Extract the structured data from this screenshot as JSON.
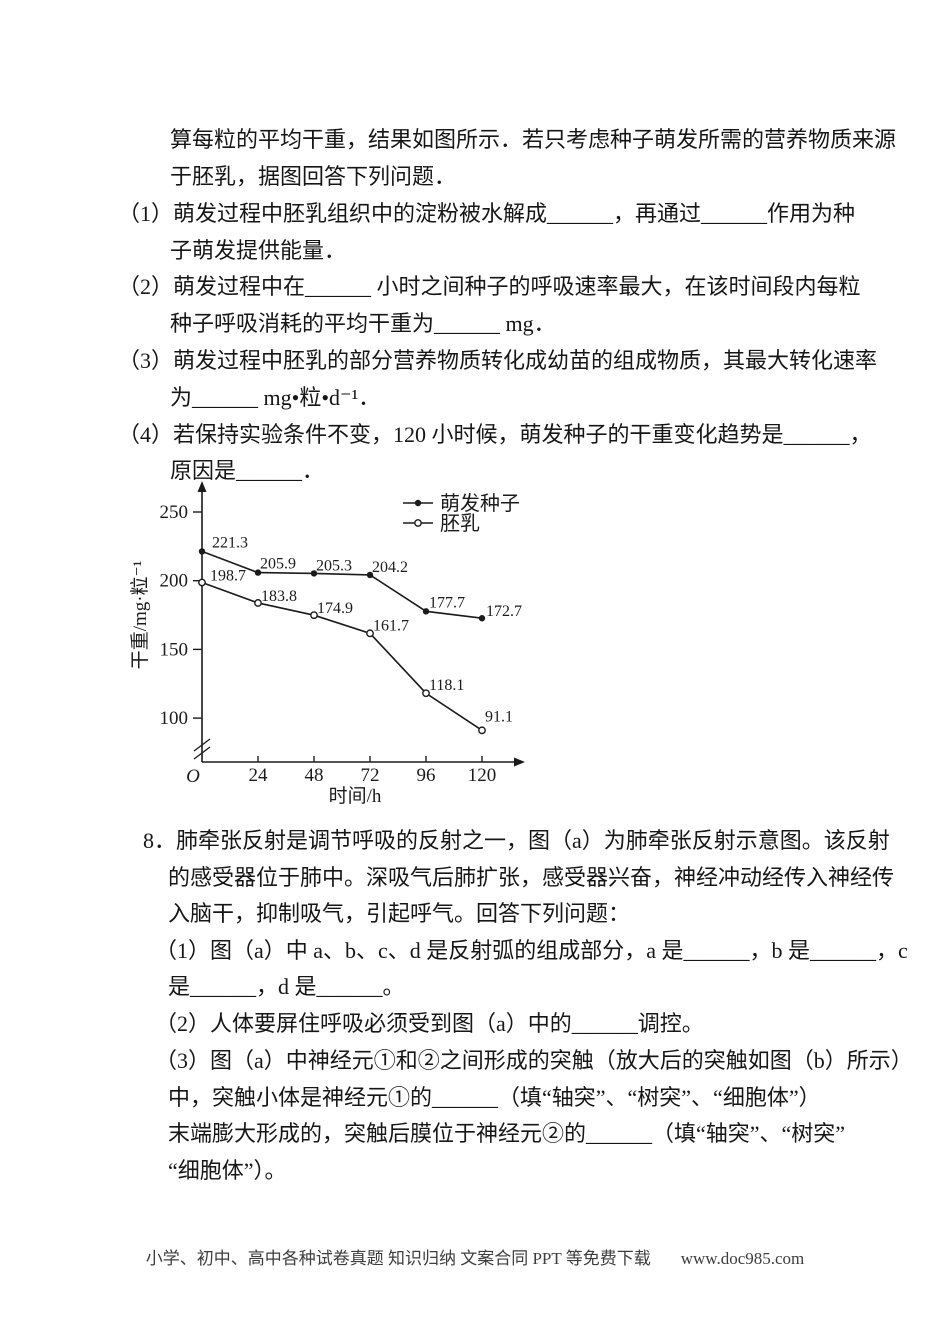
{
  "q7": {
    "intro_l1": "算每粒的平均干重，结果如图所示．若只考虑种子萌发所需的营养物质来源",
    "intro_l2": "于胚乳，据图回答下列问题．",
    "item1_l1": "（1）萌发过程中胚乳组织中的淀粉被水解成______，再通过______作用为种",
    "item1_l2": "子萌发提供能量．",
    "item2_l1": "（2）萌发过程中在______ 小时之间种子的呼吸速率最大，在该时间段内每粒",
    "item2_l2": "种子呼吸消耗的平均干重为______ mg．",
    "item3_l1": "（3）萌发过程中胚乳的部分营养物质转化成幼苗的组成物质，其最大转化速率",
    "item3_l2": "为______ mg•粒•d⁻¹．",
    "item4_l1": "（4）若保持实验条件不变，120 小时候，萌发种子的干重变化趋势是______，",
    "item4_l2": "原因是______．"
  },
  "q8": {
    "intro_l1": "8．肺牵张反射是调节呼吸的反射之一，图（a）为肺牵张反射示意图。该反射",
    "intro_l2": "的感受器位于肺中。深吸气后肺扩张，感受器兴奋，神经冲动经传入神经传",
    "intro_l3": "入脑干，抑制吸气，引起呼气。回答下列问题：",
    "item1_l1": "（1）图（a）中 a、b、c、d 是反射弧的组成部分，a 是______，b 是______，c",
    "item1_l2": "是______，d 是______。",
    "item2_l1": "（2）人体要屏住呼吸必须受到图（a）中的______调控。",
    "item3_l1": "（3）图（a）中神经元①和②之间形成的突触（放大后的突触如图（b）所示）",
    "item3_l2": "中，突触小体是神经元①的______（填“轴突”、“树突”、“细胞体”）",
    "item3_l3": "末端膨大形成的，突触后膜位于神经元②的______（填“轴突”、“树突”",
    "item3_l4": "“细胞体”）。"
  },
  "footer": {
    "text": "小学、初中、高中各种试卷真题 知识归纳 文案合同 PPT 等免费下载",
    "site": "www.doc985.com"
  },
  "chart_data": {
    "type": "line",
    "title": "",
    "xlabel": "时间/h",
    "ylabel": "干重/mg·粒⁻¹",
    "x": [
      0,
      24,
      48,
      72,
      96,
      120
    ],
    "x_tick_labels": [
      "O",
      "24",
      "48",
      "72",
      "96",
      "120"
    ],
    "y_ticks": [
      250,
      200,
      150,
      100
    ],
    "ylim": [
      85,
      262
    ],
    "y_axis_break": true,
    "grid": false,
    "legend_position": "top-right",
    "ink_color": "#1b1b1b",
    "series": [
      {
        "id": "germinating-seeds",
        "name": "萌发种子",
        "marker": "filled-circle",
        "values": [
          221.3,
          205.9,
          205.3,
          204.2,
          177.7,
          172.7
        ],
        "label_offsets": [
          [
            10,
            -4
          ],
          [
            2,
            -4
          ],
          [
            2,
            -3
          ],
          [
            2,
            -3
          ],
          [
            3,
            -4
          ],
          [
            4,
            -2
          ]
        ]
      },
      {
        "id": "endosperm",
        "name": "胚乳",
        "marker": "open-circle",
        "values": [
          198.7,
          183.8,
          174.9,
          161.7,
          118.1,
          91.1
        ],
        "label_offsets": [
          [
            8,
            -2
          ],
          [
            3,
            -2
          ],
          [
            3,
            -2
          ],
          [
            3,
            -3
          ],
          [
            3,
            -3
          ],
          [
            3,
            -9
          ]
        ]
      }
    ]
  }
}
